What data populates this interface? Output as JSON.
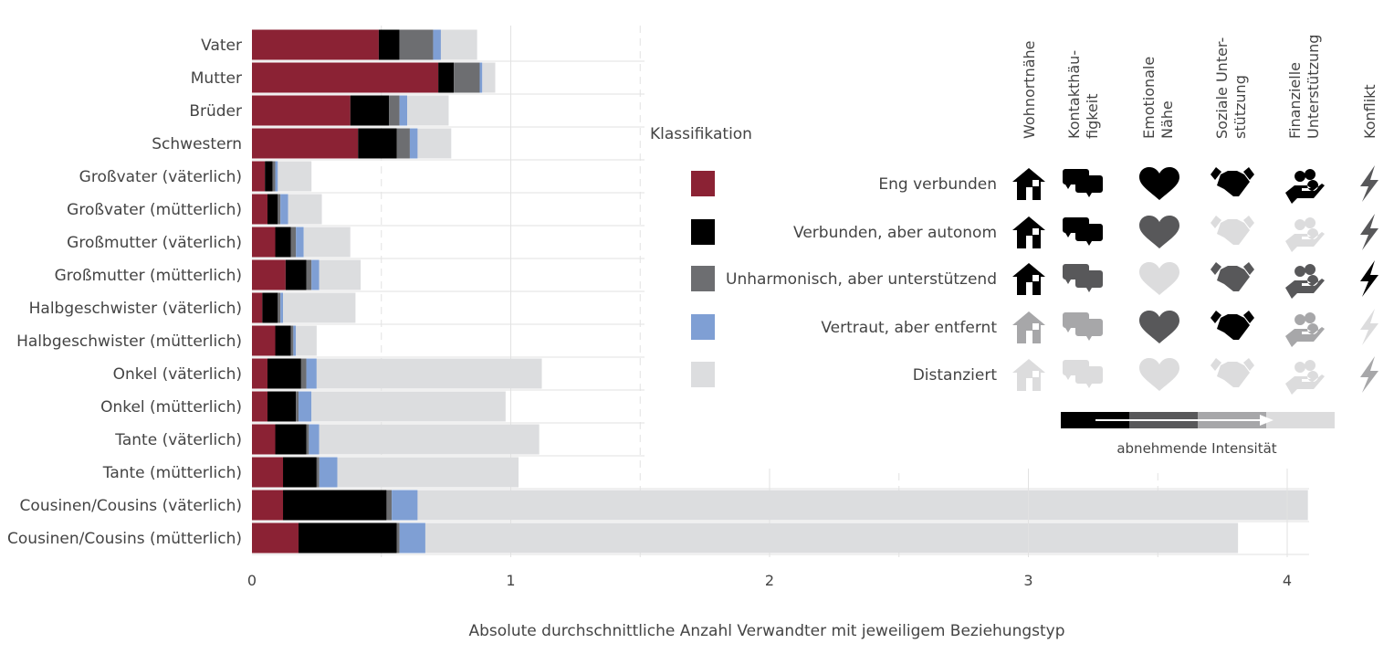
{
  "chart_data": {
    "type": "bar",
    "orientation": "horizontal",
    "stacked": true,
    "xlabel": "Absolute durchschnittliche Anzahl Verwandter mit jeweiligem Beziehungstyp",
    "xlim": [
      0,
      4.1
    ],
    "xticks": [
      0,
      1,
      2,
      3,
      4
    ],
    "grid": true,
    "categories": [
      "Vater",
      "Mutter",
      "Brüder",
      "Schwestern",
      "Großvater (väterlich)",
      "Großvater (mütterlich)",
      "Großmutter (väterlich)",
      "Großmutter (mütterlich)",
      "Halbgeschwister (väterlich)",
      "Halbgeschwister (mütterlich)",
      "Onkel (väterlich)",
      "Onkel (mütterlich)",
      "Tante (väterlich)",
      "Tante (mütterlich)",
      "Cousinen/Cousins (väterlich)",
      "Cousinen/Cousins (mütterlich)"
    ],
    "series": [
      {
        "name": "Eng verbunden",
        "color": "#8b2234",
        "values": [
          0.49,
          0.72,
          0.38,
          0.41,
          0.05,
          0.06,
          0.09,
          0.13,
          0.04,
          0.09,
          0.06,
          0.06,
          0.09,
          0.12,
          0.12,
          0.18
        ]
      },
      {
        "name": "Verbunden, aber autonom",
        "color": "#000000",
        "values": [
          0.08,
          0.06,
          0.15,
          0.15,
          0.03,
          0.04,
          0.06,
          0.08,
          0.06,
          0.06,
          0.13,
          0.11,
          0.12,
          0.13,
          0.4,
          0.38
        ]
      },
      {
        "name": "Unharmonisch, aber unterstützend",
        "color": "#6d6e71",
        "values": [
          0.13,
          0.1,
          0.04,
          0.05,
          0.01,
          0.01,
          0.02,
          0.02,
          0.01,
          0.01,
          0.02,
          0.01,
          0.01,
          0.01,
          0.02,
          0.01
        ]
      },
      {
        "name": "Vertraut, aber entfernt",
        "color": "#7f9fd4",
        "values": [
          0.03,
          0.01,
          0.03,
          0.03,
          0.01,
          0.03,
          0.03,
          0.03,
          0.01,
          0.01,
          0.04,
          0.05,
          0.04,
          0.07,
          0.1,
          0.1
        ]
      },
      {
        "name": "Distanziert",
        "color": "#dcdddf",
        "values": [
          0.14,
          0.05,
          0.16,
          0.13,
          0.13,
          0.13,
          0.18,
          0.16,
          0.28,
          0.08,
          0.87,
          0.75,
          0.85,
          0.7,
          3.44,
          3.14
        ]
      }
    ],
    "legend": {
      "title": "Klassifikation",
      "placement": "right"
    }
  },
  "icon_legend": {
    "columns": [
      {
        "label": [
          "Wohnortnähe"
        ],
        "icon": "house-icon"
      },
      {
        "label": [
          "Kontakthäu-",
          "figkeit"
        ],
        "icon": "chat-icon"
      },
      {
        "label": [
          "Emotionale",
          "Nähe"
        ],
        "icon": "heart-icon"
      },
      {
        "label": [
          "Soziale Unter-",
          "stützung"
        ],
        "icon": "handshake-icon"
      },
      {
        "label": [
          "Finanzielle",
          "Unterstützung"
        ],
        "icon": "money-hand-icon"
      },
      {
        "label": [
          "Konflikt"
        ],
        "icon": "lightning-icon"
      }
    ],
    "shades": {
      "K": "#000000",
      "D": "#58585a",
      "M": "#a7a7a9",
      "L": "#dcdcdd"
    },
    "rows": [
      [
        "K",
        "K",
        "K",
        "K",
        "K",
        "D"
      ],
      [
        "K",
        "K",
        "D",
        "L",
        "L",
        "D"
      ],
      [
        "K",
        "D",
        "L",
        "D",
        "D",
        "K"
      ],
      [
        "M",
        "M",
        "D",
        "K",
        "M",
        "L"
      ],
      [
        "L",
        "L",
        "L",
        "L",
        "L",
        "M"
      ]
    ],
    "intensity_label": "abnehmende Intensität"
  }
}
